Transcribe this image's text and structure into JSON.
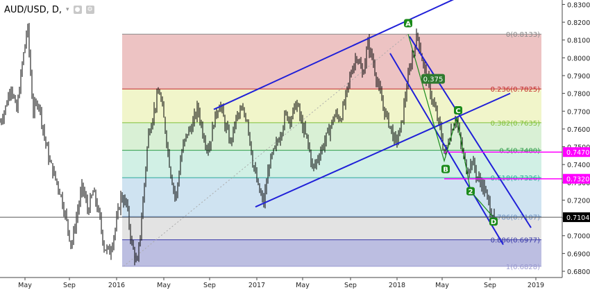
{
  "header": {
    "symbol": "AUD/USD, D,",
    "caret": "▾",
    "icons": [
      "eye-icon",
      "settings-icon"
    ]
  },
  "colors": {
    "candle": "#000000",
    "channel": "#1f1fd8",
    "elliott": "#1a8a1a",
    "magenta": "#ff00ff",
    "last_price_bg": "#000000",
    "trend_dotted": "#aaaaaa"
  },
  "chart_data": {
    "type": "candlestick",
    "symbol": "AUD/USD",
    "timeframe": "D",
    "x_labels": [
      "May",
      "Sep",
      "2016",
      "May",
      "Sep",
      "2017",
      "May",
      "Sep",
      "2018",
      "May",
      "Sep",
      "2019"
    ],
    "y_ticks": [
      "0.8300",
      "0.8200",
      "0.8100",
      "0.8000",
      "0.7900",
      "0.7800",
      "0.7700",
      "0.7600",
      "0.7500",
      "0.7400",
      "0.7300",
      "0.7200",
      "0.7100",
      "0.7000",
      "0.6900",
      "0.6800"
    ],
    "ylim": [
      0.6765,
      0.8325
    ],
    "fib_levels": [
      {
        "label": "0(0.8133)",
        "value": 0.8133,
        "color": "#888888",
        "fill": "#e8b4b4"
      },
      {
        "label": "0.236(0.7825)",
        "value": 0.7825,
        "color": "#c42a2a",
        "fill": "#eef2bd"
      },
      {
        "label": "0.382(0.7635)",
        "value": 0.7635,
        "color": "#7fbf36",
        "fill": "#cfeccb"
      },
      {
        "label": "0.5(0.7480)",
        "value": 0.748,
        "color": "#2e9b4a",
        "fill": "#c5ecdf"
      },
      {
        "label": "0.618(0.7326)",
        "value": 0.7326,
        "color": "#2aa89a",
        "fill": "#c3dcee"
      },
      {
        "label": "0.786(0.7107)",
        "value": 0.7107,
        "color": "#6a8fbf",
        "fill": "#dcdcdc"
      },
      {
        "label": "0.886(0.6977)",
        "value": 0.6977,
        "color": "#3838a8",
        "fill": "#abaed9"
      },
      {
        "label": "1(0.6828)",
        "value": 0.6828,
        "color": "#9a9ad0",
        "fill": null
      }
    ],
    "horizontal_lines": [
      {
        "label": "0.7470",
        "value": 0.747,
        "color": "#ff00ff"
      },
      {
        "label": "0.7320",
        "value": 0.732,
        "color": "#ff00ff"
      }
    ],
    "last_price": {
      "label": "0.7104",
      "value": 0.7104
    },
    "elliott_labels": [
      "A",
      "B",
      "C",
      "2",
      "D"
    ],
    "annotation": "0.375",
    "price_path": [
      [
        0.0,
        0.764
      ],
      [
        0.02,
        0.772
      ],
      [
        0.04,
        0.785
      ],
      [
        0.06,
        0.769
      ],
      [
        0.08,
        0.795
      ],
      [
        0.1,
        0.818
      ],
      [
        0.12,
        0.77
      ],
      [
        0.14,
        0.776
      ],
      [
        0.16,
        0.757
      ],
      [
        0.18,
        0.742
      ],
      [
        0.2,
        0.733
      ],
      [
        0.22,
        0.724
      ],
      [
        0.24,
        0.71
      ],
      [
        0.26,
        0.694
      ],
      [
        0.28,
        0.712
      ],
      [
        0.3,
        0.728
      ],
      [
        0.32,
        0.714
      ],
      [
        0.34,
        0.725
      ],
      [
        0.36,
        0.712
      ],
      [
        0.38,
        0.693
      ],
      [
        0.4,
        0.691
      ],
      [
        0.42,
        0.704
      ],
      [
        0.44,
        0.722
      ],
      [
        0.46,
        0.718
      ],
      [
        0.48,
        0.695
      ],
      [
        0.5,
        0.683
      ],
      [
        0.52,
        0.718
      ],
      [
        0.54,
        0.757
      ],
      [
        0.56,
        0.77
      ],
      [
        0.58,
        0.782
      ],
      [
        0.6,
        0.762
      ],
      [
        0.62,
        0.737
      ],
      [
        0.64,
        0.72
      ],
      [
        0.66,
        0.746
      ],
      [
        0.68,
        0.757
      ],
      [
        0.7,
        0.762
      ],
      [
        0.72,
        0.772
      ],
      [
        0.74,
        0.757
      ],
      [
        0.76,
        0.748
      ],
      [
        0.78,
        0.765
      ],
      [
        0.8,
        0.775
      ],
      [
        0.82,
        0.762
      ],
      [
        0.84,
        0.752
      ],
      [
        0.86,
        0.766
      ],
      [
        0.88,
        0.77
      ],
      [
        0.9,
        0.766
      ],
      [
        0.92,
        0.742
      ],
      [
        0.94,
        0.727
      ],
      [
        0.96,
        0.718
      ],
      [
        0.98,
        0.74
      ],
      [
        1.0,
        0.748
      ],
      [
        1.02,
        0.757
      ],
      [
        1.04,
        0.768
      ],
      [
        1.06,
        0.766
      ],
      [
        1.08,
        0.775
      ],
      [
        1.1,
        0.762
      ],
      [
        1.12,
        0.753
      ],
      [
        1.14,
        0.737
      ],
      [
        1.16,
        0.745
      ],
      [
        1.18,
        0.752
      ],
      [
        1.2,
        0.76
      ],
      [
        1.22,
        0.768
      ],
      [
        1.24,
        0.766
      ],
      [
        1.26,
        0.778
      ],
      [
        1.28,
        0.793
      ],
      [
        1.3,
        0.802
      ],
      [
        1.32,
        0.79
      ],
      [
        1.34,
        0.808
      ],
      [
        1.36,
        0.797
      ],
      [
        1.38,
        0.782
      ],
      [
        1.4,
        0.77
      ],
      [
        1.42,
        0.762
      ],
      [
        1.44,
        0.752
      ],
      [
        1.46,
        0.76
      ],
      [
        1.48,
        0.783
      ],
      [
        1.5,
        0.8
      ],
      [
        1.52,
        0.8133
      ],
      [
        1.54,
        0.797
      ],
      [
        1.56,
        0.785
      ],
      [
        1.58,
        0.773
      ],
      [
        1.6,
        0.762
      ],
      [
        1.62,
        0.745
      ],
      [
        1.64,
        0.758
      ],
      [
        1.66,
        0.767
      ],
      [
        1.68,
        0.75
      ],
      [
        1.7,
        0.737
      ],
      [
        1.72,
        0.742
      ],
      [
        1.74,
        0.732
      ],
      [
        1.76,
        0.728
      ],
      [
        1.78,
        0.718
      ],
      [
        1.8,
        0.71
      ]
    ]
  }
}
